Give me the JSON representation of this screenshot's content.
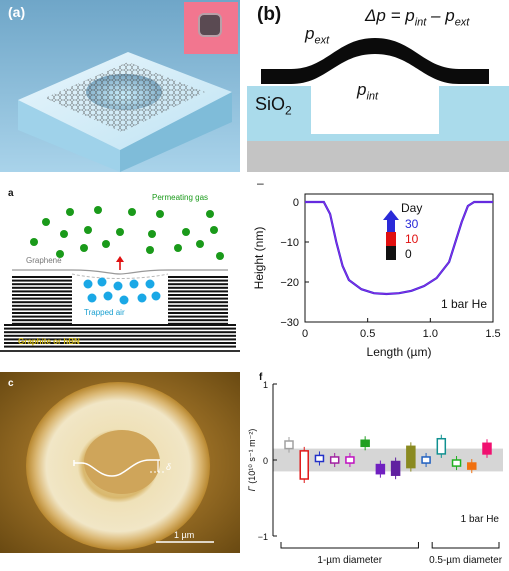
{
  "panel_a": {
    "label": "(a)"
  },
  "panel_b": {
    "label": "(b)",
    "p_ext": "p",
    "p_ext_sub": "ext",
    "equation": {
      "lhs": "Δp = p",
      "lhs_sub": "int",
      "mid": " – p",
      "mid_sub": "ext"
    },
    "p_int": "p",
    "p_int_sub": "int",
    "sio2": "SiO",
    "sio2_sub": "2"
  },
  "panel_schematic": {
    "label": "a",
    "permeating_gas": "Permeating gas",
    "graphene": "Graphene",
    "trapped_air": "Trapped air",
    "substrate": "Graphite or hBN"
  },
  "panel_height": {
    "tick_mark": "–",
    "chart_data": {
      "type": "line",
      "xlabel": "Length (µm)",
      "ylabel": "Height (nm)",
      "xlim": [
        0,
        1.5
      ],
      "ylim": [
        -30,
        2
      ],
      "xticks": [
        "0",
        "0.5",
        "1.0",
        "1.5"
      ],
      "yticks": [
        "0",
        "−10",
        "−20",
        "−30"
      ],
      "legend_title": "Day",
      "legend": [
        {
          "label": "30",
          "color": "#2a2ad8"
        },
        {
          "label": "10",
          "color": "#e01010"
        },
        {
          "label": "0",
          "color": "#111111"
        }
      ],
      "annotation": "1 bar He",
      "series": [
        {
          "color": "#8a2be2",
          "x": [
            0,
            0.15,
            0.2,
            0.25,
            0.3,
            0.35,
            0.45,
            0.55,
            0.65,
            0.75,
            0.85,
            0.95,
            1.05,
            1.15,
            1.2,
            1.25,
            1.3,
            1.35,
            1.5
          ],
          "y": [
            0,
            0,
            -3,
            -10,
            -16,
            -19.5,
            -21.8,
            -22.8,
            -23,
            -22.8,
            -22.2,
            -21,
            -19,
            -15,
            -10,
            -5,
            -1,
            0,
            0
          ]
        }
      ]
    }
  },
  "panel_afm": {
    "label": "c",
    "delta": "δ",
    "scalebar": "1 µm"
  },
  "panel_rate": {
    "label": "f",
    "chart_data": {
      "type": "scatter",
      "ylabel_symbol": "Γ",
      "ylabel_units": "(10¹⁰ s⁻¹ m⁻²)",
      "ylim": [
        -1,
        1
      ],
      "yticks": [
        "1",
        "0",
        "−1"
      ],
      "band": [
        -0.15,
        0.15
      ],
      "groups": [
        "1-µm diameter",
        "0.5-µm diameter"
      ],
      "annotation": "1 bar He",
      "points": [
        {
          "value": 0.2,
          "low": 0.15,
          "high": 0.25,
          "color": "#a0a0a0",
          "filled": false
        },
        {
          "value": 0.0,
          "low": -0.25,
          "high": 0.12,
          "color": "#e01818",
          "filled": false
        },
        {
          "value": 0.02,
          "low": -0.02,
          "high": 0.06,
          "color": "#2230c8",
          "filled": false
        },
        {
          "value": 0.0,
          "low": -0.04,
          "high": 0.04,
          "color": "#a020a0",
          "filled": false
        },
        {
          "value": 0.0,
          "low": -0.04,
          "high": 0.04,
          "color": "#c010c0",
          "filled": false
        },
        {
          "value": 0.22,
          "low": 0.18,
          "high": 0.26,
          "color": "#22a022",
          "filled": true
        },
        {
          "value": -0.12,
          "low": -0.18,
          "high": -0.06,
          "color": "#7020c0",
          "filled": true
        },
        {
          "value": -0.1,
          "low": -0.2,
          "high": -0.02,
          "color": "#6020a0",
          "filled": true
        },
        {
          "value": 0.05,
          "low": -0.1,
          "high": 0.18,
          "color": "#8a8a20",
          "filled": true
        },
        {
          "value": 0.0,
          "low": -0.04,
          "high": 0.04,
          "color": "#2060c0",
          "filled": false
        },
        {
          "value": 0.17,
          "low": 0.08,
          "high": 0.28,
          "color": "#109090",
          "filled": false
        },
        {
          "value": -0.04,
          "low": -0.08,
          "high": 0.0,
          "color": "#20b020",
          "filled": false
        },
        {
          "value": -0.08,
          "low": -0.12,
          "high": -0.04,
          "color": "#f07010",
          "filled": true
        },
        {
          "value": 0.15,
          "low": 0.08,
          "high": 0.22,
          "color": "#f01070",
          "filled": true
        }
      ]
    }
  }
}
